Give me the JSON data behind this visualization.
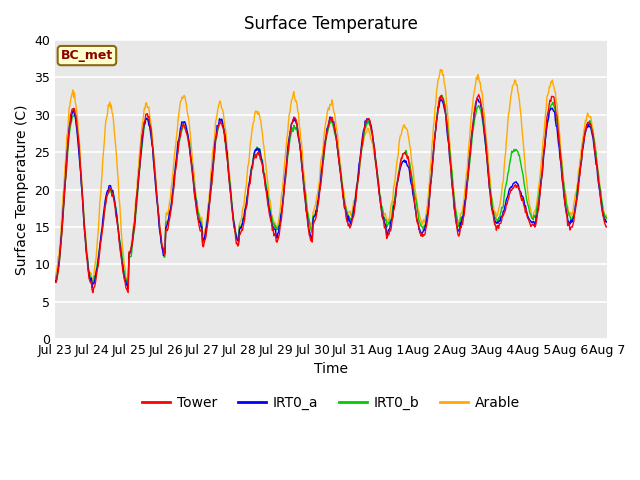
{
  "title": "Surface Temperature",
  "xlabel": "Time",
  "ylabel": "Surface Temperature (C)",
  "annotation": "BC_met",
  "ylim": [
    0,
    40
  ],
  "yticks": [
    0,
    5,
    10,
    15,
    20,
    25,
    30,
    35,
    40
  ],
  "legend_entries": [
    "Tower",
    "IRT0_a",
    "IRT0_b",
    "Arable"
  ],
  "legend_colors": [
    "#ff0000",
    "#0000ff",
    "#00cc00",
    "#ffaa00"
  ],
  "background_color": "#e8e8e8",
  "fig_background": "#ffffff",
  "title_fontsize": 12,
  "axis_label_fontsize": 10,
  "tick_fontsize": 9,
  "x_tick_labels": [
    "Jul 23",
    "Jul 24",
    "Jul 25",
    "Jul 26",
    "Jul 27",
    "Jul 28",
    "Jul 29",
    "Jul 30",
    "Jul 31",
    "Aug 1",
    "Aug 2",
    "Aug 3",
    "Aug 4",
    "Aug 5",
    "Aug 6",
    "Aug 7"
  ],
  "x_tick_positions": [
    0,
    1,
    2,
    3,
    4,
    5,
    6,
    7,
    8,
    9,
    10,
    11,
    12,
    13,
    14,
    15
  ],
  "day_mins_tower": [
    7.5,
    6.5,
    11.5,
    14.5,
    12.5,
    14.0,
    13.0,
    15.5,
    15.0,
    13.5,
    14.0,
    15.0,
    15.0,
    15.0,
    15.0
  ],
  "day_maxs_tower": [
    31.0,
    20.0,
    30.0,
    28.5,
    29.0,
    25.0,
    29.5,
    29.5,
    29.5,
    25.0,
    32.5,
    32.5,
    20.5,
    32.5,
    29.0
  ],
  "day_mins_irt0a": [
    7.8,
    7.0,
    11.2,
    15.0,
    13.0,
    14.5,
    13.5,
    16.0,
    15.5,
    14.0,
    14.5,
    15.5,
    15.5,
    15.5,
    15.5
  ],
  "day_maxs_irt0a": [
    30.5,
    20.5,
    29.5,
    29.0,
    29.5,
    25.5,
    29.5,
    29.5,
    29.5,
    24.0,
    32.0,
    32.0,
    21.0,
    31.0,
    28.5
  ],
  "day_mins_irt0b": [
    8.0,
    7.5,
    11.0,
    15.5,
    13.0,
    15.0,
    14.5,
    16.5,
    16.0,
    15.0,
    15.0,
    16.0,
    16.0,
    16.5,
    16.0
  ],
  "day_maxs_irt0b": [
    30.0,
    20.0,
    29.5,
    28.5,
    29.0,
    25.5,
    28.5,
    29.0,
    29.0,
    25.0,
    32.5,
    31.0,
    25.5,
    31.5,
    29.0
  ],
  "day_mins_arable": [
    8.5,
    7.8,
    11.5,
    16.0,
    13.5,
    15.5,
    15.0,
    17.0,
    16.5,
    15.5,
    15.5,
    16.5,
    16.5,
    17.0,
    16.5
  ],
  "day_maxs_arable": [
    33.0,
    31.5,
    31.5,
    32.5,
    31.5,
    30.5,
    32.5,
    31.5,
    28.0,
    28.5,
    36.0,
    35.0,
    34.5,
    34.5,
    30.0
  ]
}
